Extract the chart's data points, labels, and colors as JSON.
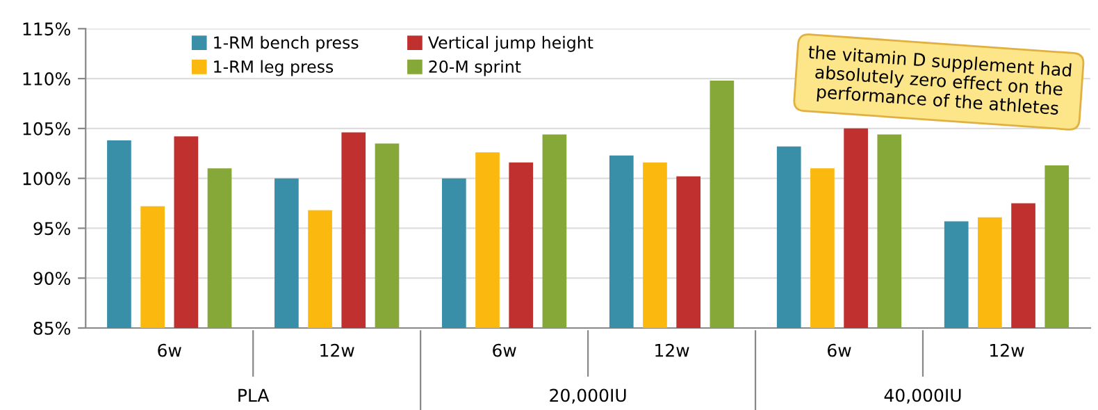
{
  "chart_data": {
    "type": "bar",
    "categories": [
      "6w",
      "12w",
      "6w",
      "12w",
      "6w",
      "12w"
    ],
    "series": [
      {
        "name": "1-RM bench press",
        "color": "#3a8fa8",
        "values": [
          103.8,
          100.0,
          100.0,
          102.3,
          103.2,
          95.7
        ]
      },
      {
        "name": "1-RM leg press",
        "color": "#fbb80f",
        "values": [
          97.2,
          96.8,
          102.6,
          101.6,
          101.0,
          96.1
        ]
      },
      {
        "name": "Vertical jump height",
        "color": "#c0302f",
        "values": [
          104.2,
          104.6,
          101.6,
          100.2,
          105.0,
          97.5
        ]
      },
      {
        "name": "20-M sprint",
        "color": "#86a838",
        "values": [
          101.0,
          103.5,
          104.4,
          109.8,
          104.4,
          101.3
        ]
      }
    ],
    "ylim": [
      85,
      115
    ],
    "yticks": [
      {
        "value": 85,
        "label": "85%"
      },
      {
        "value": 90,
        "label": "90%"
      },
      {
        "value": 95,
        "label": "95%"
      },
      {
        "value": 100,
        "label": "100%"
      },
      {
        "value": 105,
        "label": "105%"
      },
      {
        "value": 110,
        "label": "110%"
      },
      {
        "value": 115,
        "label": "115%"
      }
    ],
    "grid": "y",
    "legend": "top left",
    "annotations": [
      "PLA",
      "20,000IU",
      "40,000IU",
      "the vitamin D supplement had absolutely zero effect on the performance of the athletes"
    ]
  }
}
